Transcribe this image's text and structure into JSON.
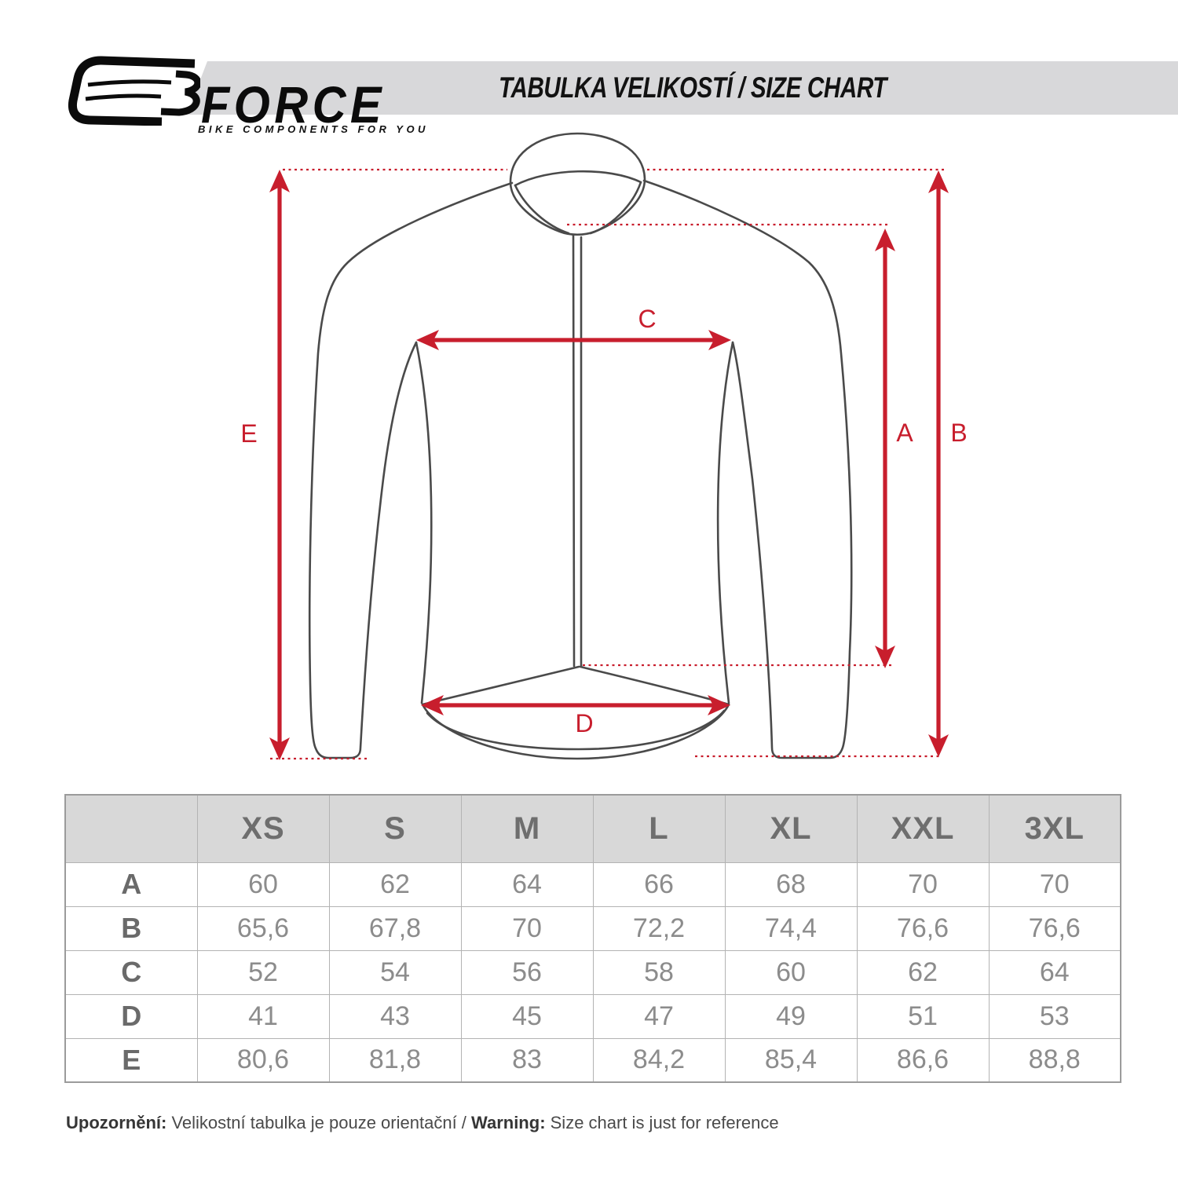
{
  "header": {
    "brand": "FORCE",
    "tagline": "BIKE COMPONENTS FOR YOU",
    "banner_title": "TABULKA VELIKOSTÍ / SIZE CHART"
  },
  "diagram": {
    "labels": {
      "A": "A",
      "B": "B",
      "C": "C",
      "D": "D",
      "E": "E"
    }
  },
  "size_table": {
    "columns": [
      "XS",
      "S",
      "M",
      "L",
      "XL",
      "XXL",
      "3XL"
    ],
    "rows": [
      {
        "label": "A",
        "values": [
          "60",
          "62",
          "64",
          "66",
          "68",
          "70",
          "70"
        ]
      },
      {
        "label": "B",
        "values": [
          "65,6",
          "67,8",
          "70",
          "72,2",
          "74,4",
          "76,6",
          "76,6"
        ]
      },
      {
        "label": "C",
        "values": [
          "52",
          "54",
          "56",
          "58",
          "60",
          "62",
          "64"
        ]
      },
      {
        "label": "D",
        "values": [
          "41",
          "43",
          "45",
          "47",
          "49",
          "51",
          "53"
        ]
      },
      {
        "label": "E",
        "values": [
          "80,6",
          "81,8",
          "83",
          "84,2",
          "85,4",
          "86,6",
          "88,8"
        ]
      }
    ]
  },
  "footnote": {
    "label_cz": "Upozornění:",
    "text_cz": " Velikostní tabulka je pouze orientační / ",
    "label_en": "Warning:",
    "text_en": " Size chart is just for reference"
  },
  "colors": {
    "accent_red": "#C81E2D",
    "outline_gray": "#4A4A4A",
    "banner_gray": "#D8D8DA",
    "table_header_bg": "#D8D8D8",
    "table_header_text": "#6E6E6E",
    "table_value_text": "#8C8C8C"
  }
}
